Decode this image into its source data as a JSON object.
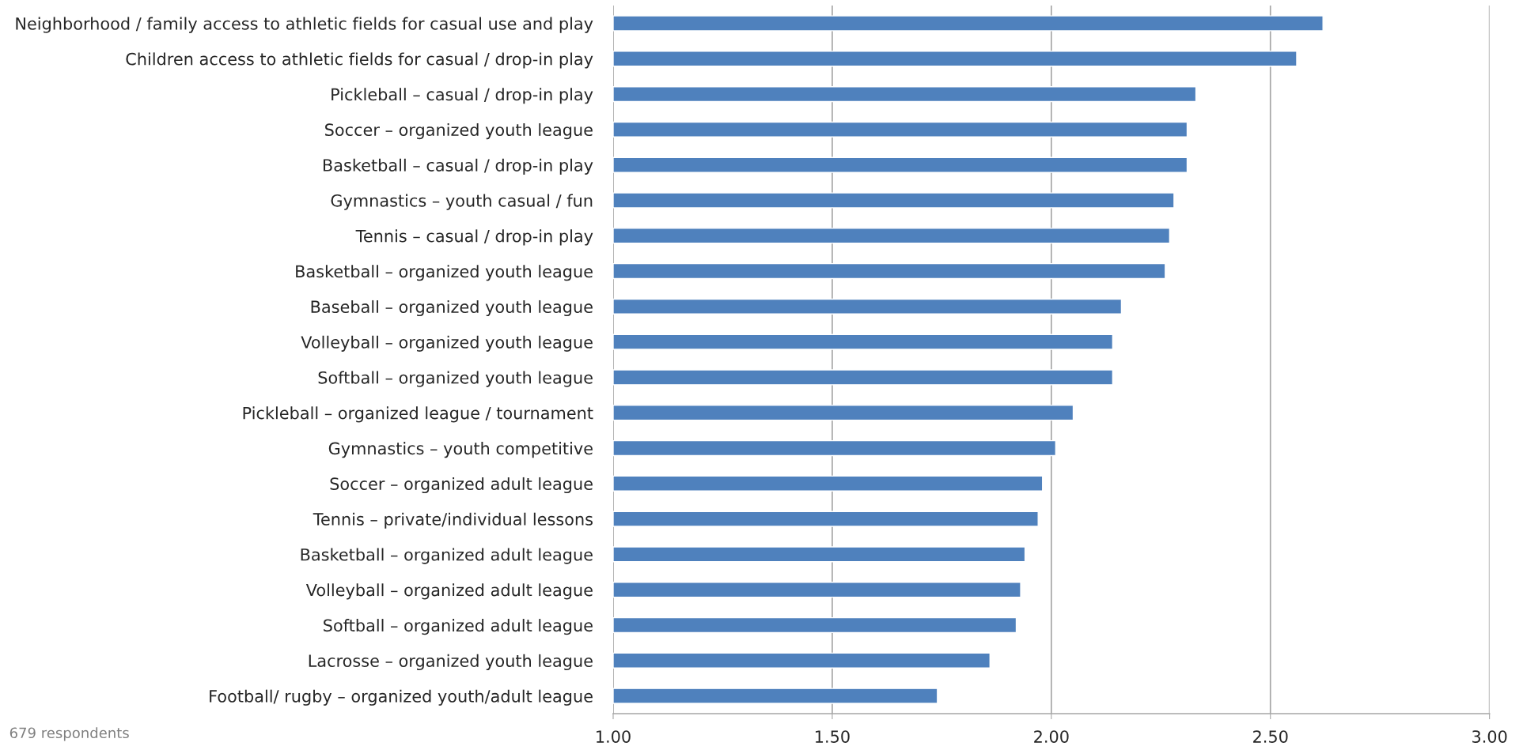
{
  "chart_data": {
    "type": "bar",
    "orientation": "horizontal",
    "categories": [
      "Neighborhood / family access to athletic fields for casual use and play",
      "Children access to athletic fields for casual / drop-in play",
      "Pickleball – casual / drop-in play",
      "Soccer – organized youth league",
      "Basketball – casual / drop-in play",
      "Gymnastics – youth casual / fun",
      "Tennis – casual / drop-in play",
      "Basketball – organized youth league",
      "Baseball – organized youth league",
      "Volleyball – organized youth league",
      "Softball – organized youth league",
      "Pickleball – organized league / tournament",
      "Gymnastics – youth competitive",
      "Soccer – organized adult league",
      "Tennis – private/individual lessons",
      "Basketball – organized adult league",
      "Volleyball – organized adult league",
      "Softball – organized adult league",
      "Lacrosse – organized youth league",
      "Football/ rugby – organized youth/adult league"
    ],
    "values": [
      2.62,
      2.56,
      2.33,
      2.31,
      2.31,
      2.28,
      2.27,
      2.26,
      2.16,
      2.14,
      2.14,
      2.05,
      2.01,
      1.98,
      1.97,
      1.94,
      1.93,
      1.92,
      1.86,
      1.74
    ],
    "color": "#4f81bd",
    "xlim": [
      1.0,
      3.0
    ],
    "xticks": [
      {
        "value": 1.0,
        "label": "1.00"
      },
      {
        "value": 1.5,
        "label": "1.50"
      },
      {
        "value": 2.0,
        "label": "2.00"
      },
      {
        "value": 2.5,
        "label": "2.50"
      },
      {
        "value": 3.0,
        "label": "3.00"
      }
    ],
    "grid": "x",
    "annotations": [
      "679 respondents"
    ]
  }
}
